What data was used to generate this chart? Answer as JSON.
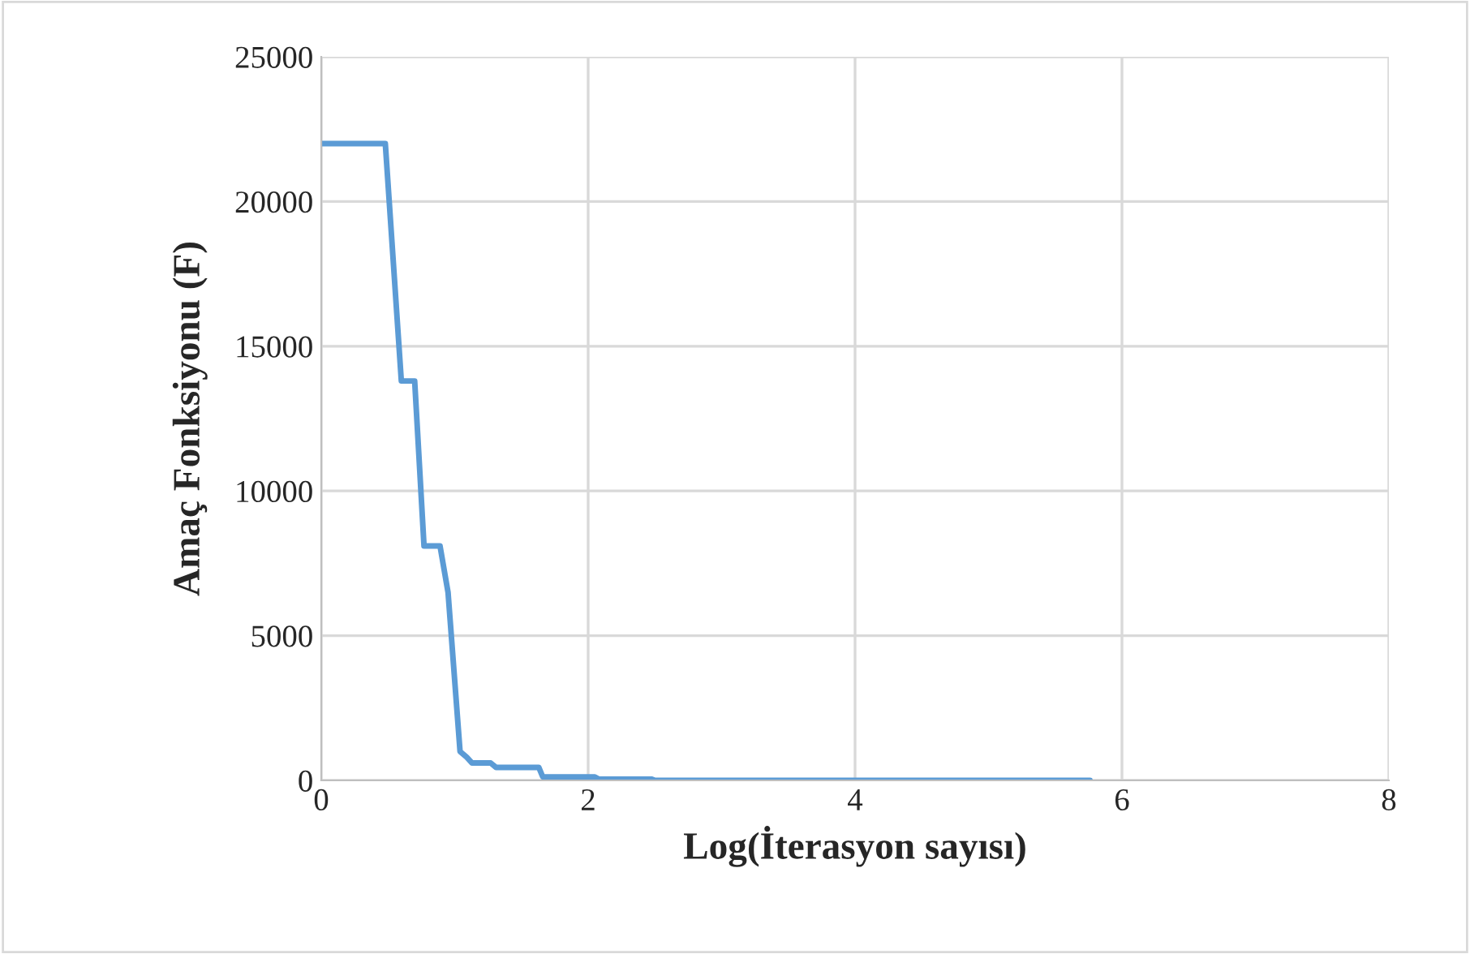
{
  "chart_data": {
    "type": "line",
    "xlabel": "Log(İterasyon sayısı)",
    "ylabel": "Amaç Fonksiyonu (F)",
    "series": [
      {
        "color": "#5b9bd5",
        "x": [
          0,
          0.48,
          0.6,
          0.7,
          0.77,
          0.89,
          0.95,
          1.04,
          1.09,
          1.13,
          1.27,
          1.31,
          1.63,
          1.66,
          2.05,
          2.08,
          2.48,
          2.5,
          5.76
        ],
        "values": [
          22000,
          22000,
          13800,
          13800,
          8100,
          8100,
          6500,
          1000,
          800,
          600,
          600,
          450,
          450,
          120,
          120,
          40,
          40,
          0,
          0
        ]
      }
    ],
    "xlim": [
      0,
      8
    ],
    "xticks": [
      0,
      2,
      4,
      6,
      8
    ],
    "ylim": [
      0,
      25000
    ],
    "yticks": [
      0,
      5000,
      10000,
      15000,
      20000,
      25000
    ],
    "grid": true,
    "marker": "none",
    "line_style": "solid"
  }
}
